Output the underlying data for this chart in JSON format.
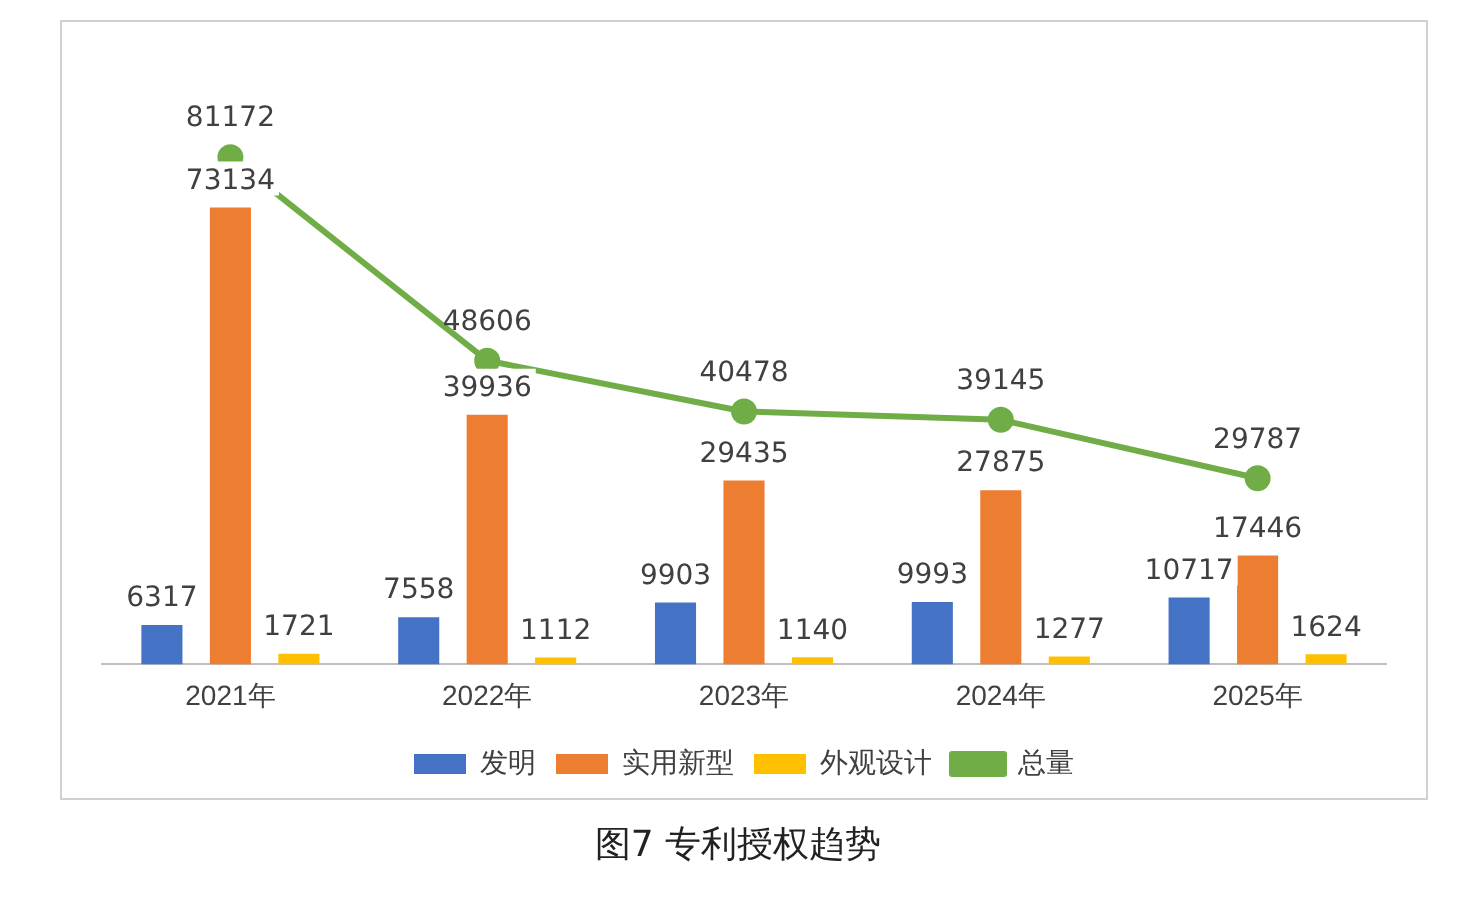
{
  "chart_data": {
    "type": "bar",
    "title": "图7 专利授权趋势",
    "categories": [
      "2021年",
      "2022年",
      "2023年",
      "2024年",
      "2025年"
    ],
    "series": [
      {
        "name": "发明",
        "color": "#4472c4",
        "values": [
          6317,
          7558,
          9903,
          9993,
          10717
        ]
      },
      {
        "name": "实用新型",
        "color": "#ed7d31",
        "values": [
          73134,
          39936,
          29435,
          27875,
          17446
        ]
      },
      {
        "name": "外观设计",
        "color": "#ffc000",
        "values": [
          1721,
          1112,
          1140,
          1277,
          1624
        ]
      },
      {
        "name": "总量",
        "type": "line",
        "color": "#70ad47",
        "values": [
          81172,
          48606,
          40478,
          39145,
          29787
        ],
        "marker": "circle"
      }
    ],
    "data_labels": true,
    "legend": "bottom",
    "grid": false,
    "tick_labels": "x"
  }
}
